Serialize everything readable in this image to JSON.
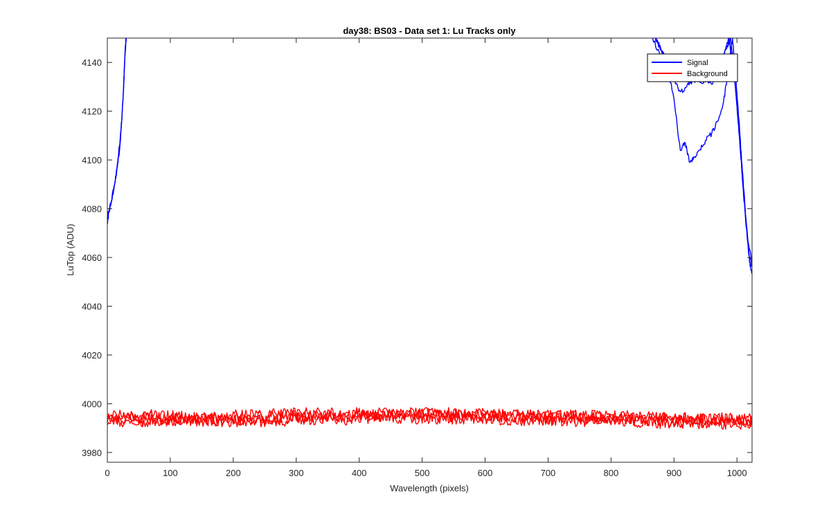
{
  "chart_data": {
    "type": "line",
    "title": "day38: BS03 - Data set 1: Lu Tracks only",
    "xlabel": "Wavelength (pixels)",
    "ylabel": "LuTop (ADU)",
    "xlim": [
      0,
      1024
    ],
    "ylim": [
      3976,
      4150
    ],
    "x_ticks": [
      0,
      100,
      200,
      300,
      400,
      500,
      600,
      700,
      800,
      900,
      1000
    ],
    "y_ticks": [
      3980,
      4000,
      4020,
      4040,
      4060,
      4080,
      4100,
      4120,
      4140
    ],
    "grid": false,
    "legend_position": "top-right",
    "series": [
      {
        "name": "Signal",
        "color": "#0000ff",
        "segments": [
          {
            "x": [
              0,
              3,
              6,
              10,
              14,
              18,
              22,
              25,
              27,
              29,
              30
            ],
            "y": [
              4074,
              4079,
              4083,
              4088,
              4094,
              4103,
              4113,
              4125,
              4138,
              4148,
              4150
            ]
          },
          {
            "x": [
              0,
              4,
              8,
              12,
              16,
              20,
              23,
              26,
              28,
              30
            ],
            "y": [
              4076,
              4081,
              4085,
              4091,
              4097,
              4106,
              4117,
              4130,
              4143,
              4150
            ]
          },
          {
            "x": [
              870,
              885,
              900,
              910,
              920,
              935,
              950,
              965,
              975,
              985,
              990
            ],
            "y": [
              4150,
              4143,
              4133,
              4128,
              4130,
              4133,
              4132,
              4137,
              4141,
              4147,
              4150
            ]
          },
          {
            "x": [
              866,
              880,
              900,
              915,
              925,
              940,
              960,
              970,
              980,
              987
            ],
            "y": [
              4150,
              4142,
              4138,
              4135,
              4132,
              4136,
              4131,
              4138,
              4144,
              4150
            ]
          },
          {
            "x": [
              872,
              888,
              900,
              910,
              918,
              925,
              932,
              940,
              950,
              960,
              970,
              978,
              985,
              990,
              993
            ],
            "y": [
              4150,
              4140,
              4125,
              4104,
              4107,
              4099,
              4101,
              4104,
              4108,
              4111,
              4116,
              4123,
              4134,
              4145,
              4150
            ]
          },
          {
            "x": [
              990,
              995,
              1000,
              1005,
              1010,
              1015,
              1020,
              1024
            ],
            "y": [
              4150,
              4138,
              4122,
              4105,
              4088,
              4072,
              4058,
              4054
            ]
          },
          {
            "x": [
              987,
              993,
              999,
              1004,
              1009,
              1014,
              1019,
              1024
            ],
            "y": [
              4150,
              4141,
              4126,
              4110,
              4092,
              4076,
              4062,
              4056
            ]
          },
          {
            "x": [
              993,
              998,
              1003,
              1008,
              1013,
              1018,
              1024
            ],
            "y": [
              4150,
              4135,
              4117,
              4098,
              4080,
              4066,
              4058
            ]
          }
        ]
      },
      {
        "name": "Background",
        "color": "#ff0000",
        "segments": [
          {
            "x": [
              0,
              100,
              200,
              300,
              400,
              500,
              600,
              700,
              800,
              900,
              1000,
              1024
            ],
            "y": [
              3995,
              3994,
              3994,
              3995,
              3995,
              3996,
              3995,
              3995,
              3994,
              3994,
              3993,
              3993
            ]
          },
          {
            "x": [
              0,
              100,
              200,
              300,
              400,
              500,
              600,
              700,
              800,
              900,
              1000,
              1024
            ],
            "y": [
              3994,
              3993,
              3993,
              3994,
              3995,
              3995,
              3995,
              3994,
              3994,
              3993,
              3992,
              3992
            ]
          },
          {
            "x": [
              0,
              100,
              200,
              300,
              400,
              500,
              600,
              700,
              800,
              900,
              1000,
              1024
            ],
            "y": [
              3996,
              3995,
              3995,
              3996,
              3996,
              3996,
              3996,
              3995,
              3995,
              3994,
              3994,
              3994
            ]
          },
          {
            "x": [
              0,
              100,
              200,
              300,
              400,
              500,
              600,
              700,
              800,
              900,
              1000,
              1024
            ],
            "y": [
              3993,
              3993,
              3993,
              3993,
              3994,
              3994,
              3994,
              3993,
              3993,
              3992,
              3992,
              3991
            ]
          }
        ]
      }
    ]
  }
}
